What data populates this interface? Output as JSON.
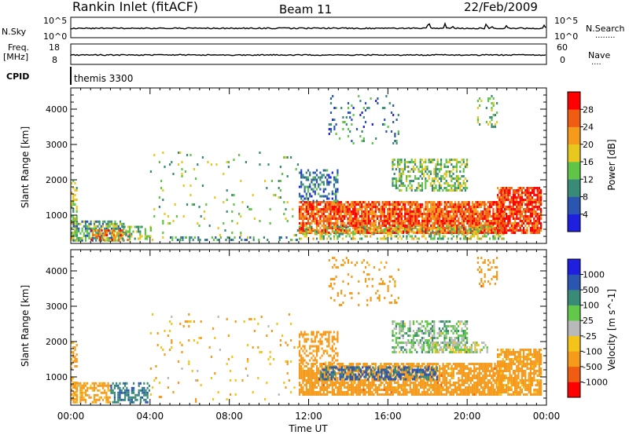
{
  "header": {
    "station": "Rankin Inlet (fitACF)",
    "beam": "Beam 11",
    "date": "22/Feb/2009"
  },
  "nsky_strip": {
    "left_label": "N.Sky",
    "left_top": "10^5",
    "left_bottom": "10^0",
    "right_top": "10^5",
    "right_bottom": "10^0",
    "right_label": "N.Search",
    "right_dots": "........"
  },
  "freq_strip": {
    "left_label": "Freq.",
    "left_unit": "[MHz]",
    "left_top": "18",
    "left_bottom": "8",
    "right_top": "60",
    "right_bottom": "0",
    "right_label": "Nave",
    "right_dots": "...."
  },
  "cpid_strip": {
    "label": "CPID",
    "program": "themis 3300"
  },
  "colors": {
    "power_scale": [
      "#1f1fe0",
      "#2a55b0",
      "#3a8a78",
      "#5fc447",
      "#e8c81e",
      "#f59a1a",
      "#f05c12",
      "#ff0000"
    ],
    "velocity_scale": [
      "#ff0000",
      "#f05c12",
      "#f59a1a",
      "#f5c418",
      "#b9b9b9",
      "#62c84a",
      "#3a8a78",
      "#2a55b0",
      "#1f1fe0"
    ]
  },
  "chart_data": [
    {
      "type": "heatmap",
      "panel": "power",
      "ylabel": "Slant Range [km]",
      "yticks": [
        "1000",
        "2000",
        "3000",
        "4000"
      ],
      "ylim": [
        200,
        4600
      ],
      "xlim_hours": [
        0,
        24
      ],
      "colorbar": {
        "label": "Power [dB]",
        "ticks": [
          "4",
          "8",
          "12",
          "16",
          "20",
          "24",
          "28"
        ],
        "range": [
          0,
          32
        ]
      },
      "regions": [
        {
          "t0": 0.0,
          "t1": 0.3,
          "r0": 300,
          "r1": 2000,
          "value": 16,
          "density": 0.55
        },
        {
          "t0": 0.1,
          "t1": 2.7,
          "r0": 300,
          "r1": 850,
          "value": 12,
          "density": 0.7
        },
        {
          "t0": 1.0,
          "t1": 3.0,
          "r0": 300,
          "r1": 600,
          "value": 24,
          "density": 0.5
        },
        {
          "t0": 2.5,
          "t1": 4.0,
          "r0": 300,
          "r1": 700,
          "value": 14,
          "density": 0.4
        },
        {
          "t0": 4.0,
          "t1": 11.5,
          "r0": 300,
          "r1": 2800,
          "value": 14,
          "density": 0.04
        },
        {
          "t0": 5.0,
          "t1": 11.5,
          "r0": 300,
          "r1": 400,
          "value": 10,
          "density": 0.3
        },
        {
          "t0": 11.5,
          "t1": 21.8,
          "r0": 500,
          "r1": 1400,
          "value": 26,
          "density": 0.85
        },
        {
          "t0": 11.5,
          "t1": 21.8,
          "r0": 300,
          "r1": 700,
          "value": 16,
          "density": 0.45
        },
        {
          "t0": 11.5,
          "t1": 13.5,
          "r0": 1400,
          "r1": 2300,
          "value": 8,
          "density": 0.45
        },
        {
          "t0": 13.0,
          "t1": 16.5,
          "r0": 3000,
          "r1": 4400,
          "value": 8,
          "density": 0.1
        },
        {
          "t0": 16.2,
          "t1": 20.0,
          "r0": 1700,
          "r1": 2600,
          "value": 14,
          "density": 0.5
        },
        {
          "t0": 21.5,
          "t1": 23.7,
          "r0": 500,
          "r1": 1800,
          "value": 28,
          "density": 0.8
        },
        {
          "t0": 20.5,
          "t1": 21.5,
          "r0": 3500,
          "r1": 4400,
          "value": 14,
          "density": 0.2
        }
      ]
    },
    {
      "type": "heatmap",
      "panel": "velocity",
      "ylabel": "Slant Range [km]",
      "yticks": [
        "1000",
        "2000",
        "3000",
        "4000"
      ],
      "ylim": [
        200,
        4600
      ],
      "xlim_hours": [
        0,
        24
      ],
      "xlabel": "Time UT",
      "xticks": [
        "00:00",
        "04:00",
        "08:00",
        "12:00",
        "16:00",
        "20:00",
        "00:00"
      ],
      "xtick_hours": [
        0,
        4,
        8,
        12,
        16,
        20,
        24
      ],
      "colorbar": {
        "label": "Velocity [m s^-1]",
        "ticks": [
          "-1000",
          "-500",
          "-100",
          "-25",
          "25",
          "100",
          "500",
          "1000"
        ]
      },
      "regions": [
        {
          "t0": 0.0,
          "t1": 0.3,
          "r0": 300,
          "r1": 2000,
          "value": -200,
          "density": 0.5
        },
        {
          "t0": 0.1,
          "t1": 2.0,
          "r0": 300,
          "r1": 850,
          "value": -150,
          "density": 0.6
        },
        {
          "t0": 2.0,
          "t1": 4.0,
          "r0": 300,
          "r1": 850,
          "value": 400,
          "density": 0.55
        },
        {
          "t0": 4.0,
          "t1": 11.5,
          "r0": 300,
          "r1": 2800,
          "value": -100,
          "density": 0.04
        },
        {
          "t0": 11.5,
          "t1": 21.8,
          "r0": 500,
          "r1": 1400,
          "value": -300,
          "density": 0.8
        },
        {
          "t0": 12.5,
          "t1": 18.5,
          "r0": 900,
          "r1": 1300,
          "value": 600,
          "density": 0.5
        },
        {
          "t0": 11.5,
          "t1": 13.5,
          "r0": 1400,
          "r1": 2300,
          "value": -250,
          "density": 0.45
        },
        {
          "t0": 13.0,
          "t1": 16.5,
          "r0": 3000,
          "r1": 4400,
          "value": -300,
          "density": 0.1
        },
        {
          "t0": 16.2,
          "t1": 20.0,
          "r0": 1700,
          "r1": 2600,
          "value": 60,
          "density": 0.5
        },
        {
          "t0": 18.0,
          "t1": 21.0,
          "r0": 1700,
          "r1": 2000,
          "value": 0,
          "density": 0.5
        },
        {
          "t0": 21.5,
          "t1": 23.7,
          "r0": 500,
          "r1": 1800,
          "value": -200,
          "density": 0.75
        },
        {
          "t0": 20.5,
          "t1": 21.5,
          "r0": 3500,
          "r1": 4400,
          "value": -300,
          "density": 0.2
        }
      ]
    }
  ]
}
